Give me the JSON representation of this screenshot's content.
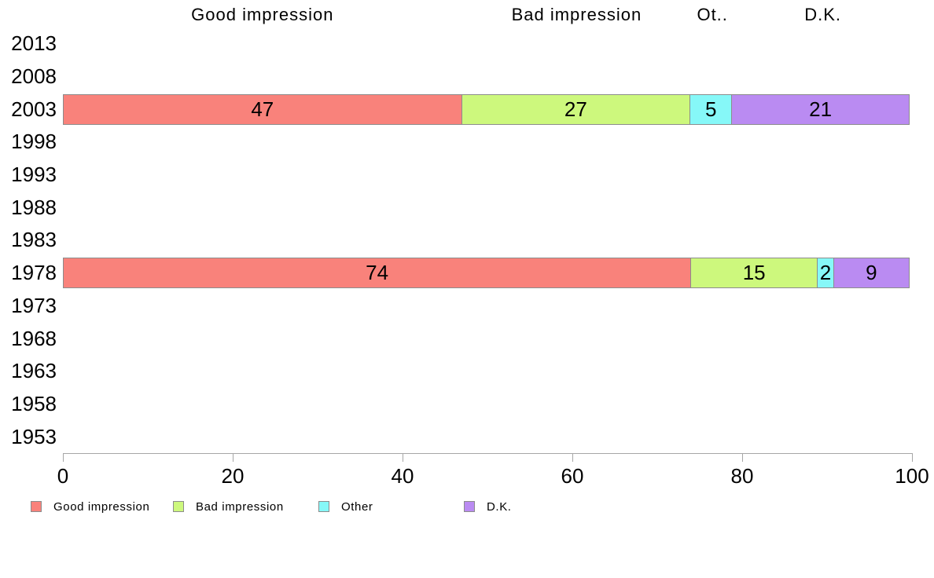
{
  "chart_data": {
    "type": "bar",
    "orientation": "horizontal",
    "stacked": true,
    "grid": false,
    "categories": [
      "2013",
      "2008",
      "2003",
      "1998",
      "1993",
      "1988",
      "1983",
      "1978",
      "1973",
      "1968",
      "1963",
      "1958",
      "1953"
    ],
    "series": [
      {
        "name": "Good impression",
        "color": "#f9827b",
        "values": [
          null,
          null,
          47,
          null,
          null,
          null,
          null,
          74,
          null,
          null,
          null,
          null,
          null
        ]
      },
      {
        "name": "Bad impression",
        "color": "#cdf87d",
        "values": [
          null,
          null,
          27,
          null,
          null,
          null,
          null,
          15,
          null,
          null,
          null,
          null,
          null
        ]
      },
      {
        "name": "Other",
        "color": "#86f8f8",
        "values": [
          null,
          null,
          5,
          null,
          null,
          null,
          null,
          2,
          null,
          null,
          null,
          null,
          null
        ]
      },
      {
        "name": "D.K.",
        "color": "#ba8bf2",
        "values": [
          null,
          null,
          21,
          null,
          null,
          null,
          null,
          9,
          null,
          null,
          null,
          null,
          null
        ]
      }
    ],
    "column_headers": [
      "Good impression",
      "Bad impression",
      "Ot..",
      "D.K."
    ],
    "header_anchor_category": "2003",
    "x_ticks": [
      "0",
      "20",
      "40",
      "60",
      "80",
      "100"
    ],
    "xlim": [
      0,
      100
    ],
    "legend": [
      {
        "label": "Good impression",
        "color": "#f9827b"
      },
      {
        "label": "Bad impression",
        "color": "#cdf87d"
      },
      {
        "label": "Other",
        "color": "#86f8f8"
      },
      {
        "label": "D.K.",
        "color": "#ba8bf2"
      }
    ],
    "bar_border_color": "#8c8c8c",
    "axis_color": "#a6a6a6",
    "text_color": "#000000"
  }
}
